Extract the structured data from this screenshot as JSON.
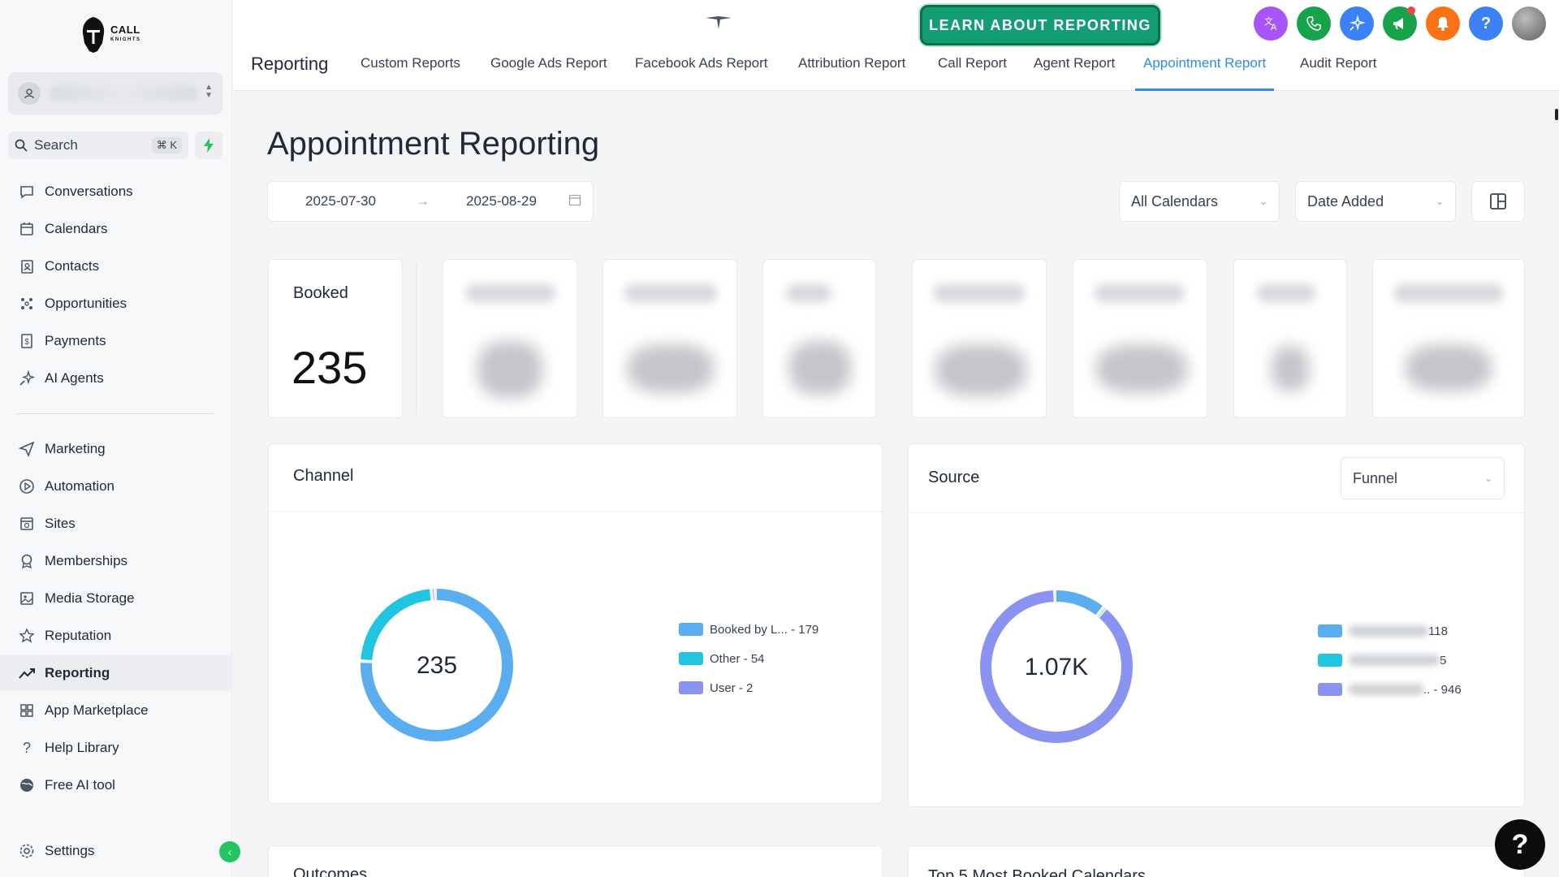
{
  "app": {
    "logo_line1": "CALL",
    "logo_line2": "KNIGHTS",
    "colors": {
      "accent": "#2b8ee6",
      "brand_green": "#139d73",
      "active_bg": "#eceef1"
    }
  },
  "sidebar": {
    "search_label": "Search",
    "search_shortcut": "⌘ K",
    "items": [
      {
        "label": "Conversations",
        "icon": "chat-icon"
      },
      {
        "label": "Calendars",
        "icon": "calendar-icon"
      },
      {
        "label": "Contacts",
        "icon": "contacts-icon"
      },
      {
        "label": "Opportunities",
        "icon": "opportunities-icon"
      },
      {
        "label": "Payments",
        "icon": "payments-icon"
      },
      {
        "label": "AI Agents",
        "icon": "sparkle-icon"
      },
      {
        "label": "Marketing",
        "icon": "send-icon"
      },
      {
        "label": "Automation",
        "icon": "automation-icon"
      },
      {
        "label": "Sites",
        "icon": "sites-icon"
      },
      {
        "label": "Memberships",
        "icon": "membership-icon"
      },
      {
        "label": "Media Storage",
        "icon": "image-icon"
      },
      {
        "label": "Reputation",
        "icon": "star-icon"
      },
      {
        "label": "Reporting",
        "icon": "trend-icon",
        "active": true
      },
      {
        "label": "App Marketplace",
        "icon": "grid-icon"
      },
      {
        "label": "Help Library",
        "icon": "question-icon"
      },
      {
        "label": "Free AI tool",
        "icon": "globe-icon"
      }
    ],
    "settings_label": "Settings"
  },
  "topbar": {
    "learn_button": "LEARN ABOUT REPORTING",
    "section_title": "Reporting",
    "tabs": [
      "Custom Reports",
      "Google Ads Report",
      "Facebook Ads Report",
      "Attribution Report",
      "Call Report",
      "Agent Report",
      "Appointment Report",
      "Audit Report"
    ],
    "active_tab": "Appointment Report"
  },
  "main": {
    "page_title": "Appointment Reporting",
    "date_start": "2025-07-30",
    "date_end": "2025-08-29",
    "calendar_filter": "All Calendars",
    "date_filter": "Date Added",
    "booked_label": "Booked",
    "booked_value": "235",
    "channel": {
      "title": "Channel",
      "center_value": "235",
      "legend": [
        "Booked by L... - 179",
        "Other - 54",
        "User - 2"
      ]
    },
    "source": {
      "title": "Source",
      "filter": "Funnel",
      "center_value": "1.07K",
      "legend_suffixes": [
        "118",
        "5",
        ".. - 946"
      ]
    },
    "outcomes_title": "Outcomes",
    "top_calendars_title": "Top 5 Most Booked Calendars"
  },
  "chart_data": [
    {
      "type": "pie",
      "title": "Channel",
      "categories": [
        "Booked by L...",
        "Other",
        "User"
      ],
      "values": [
        179,
        54,
        2
      ],
      "colors": [
        "#5aaef0",
        "#22c5e0",
        "#8b93f0"
      ],
      "center_label": "235"
    },
    {
      "type": "pie",
      "title": "Source",
      "categories": [
        "",
        "",
        ""
      ],
      "values": [
        118,
        5,
        946
      ],
      "colors": [
        "#5aaef0",
        "#22c5e0",
        "#8b93f0"
      ],
      "center_label": "1.07K"
    }
  ]
}
